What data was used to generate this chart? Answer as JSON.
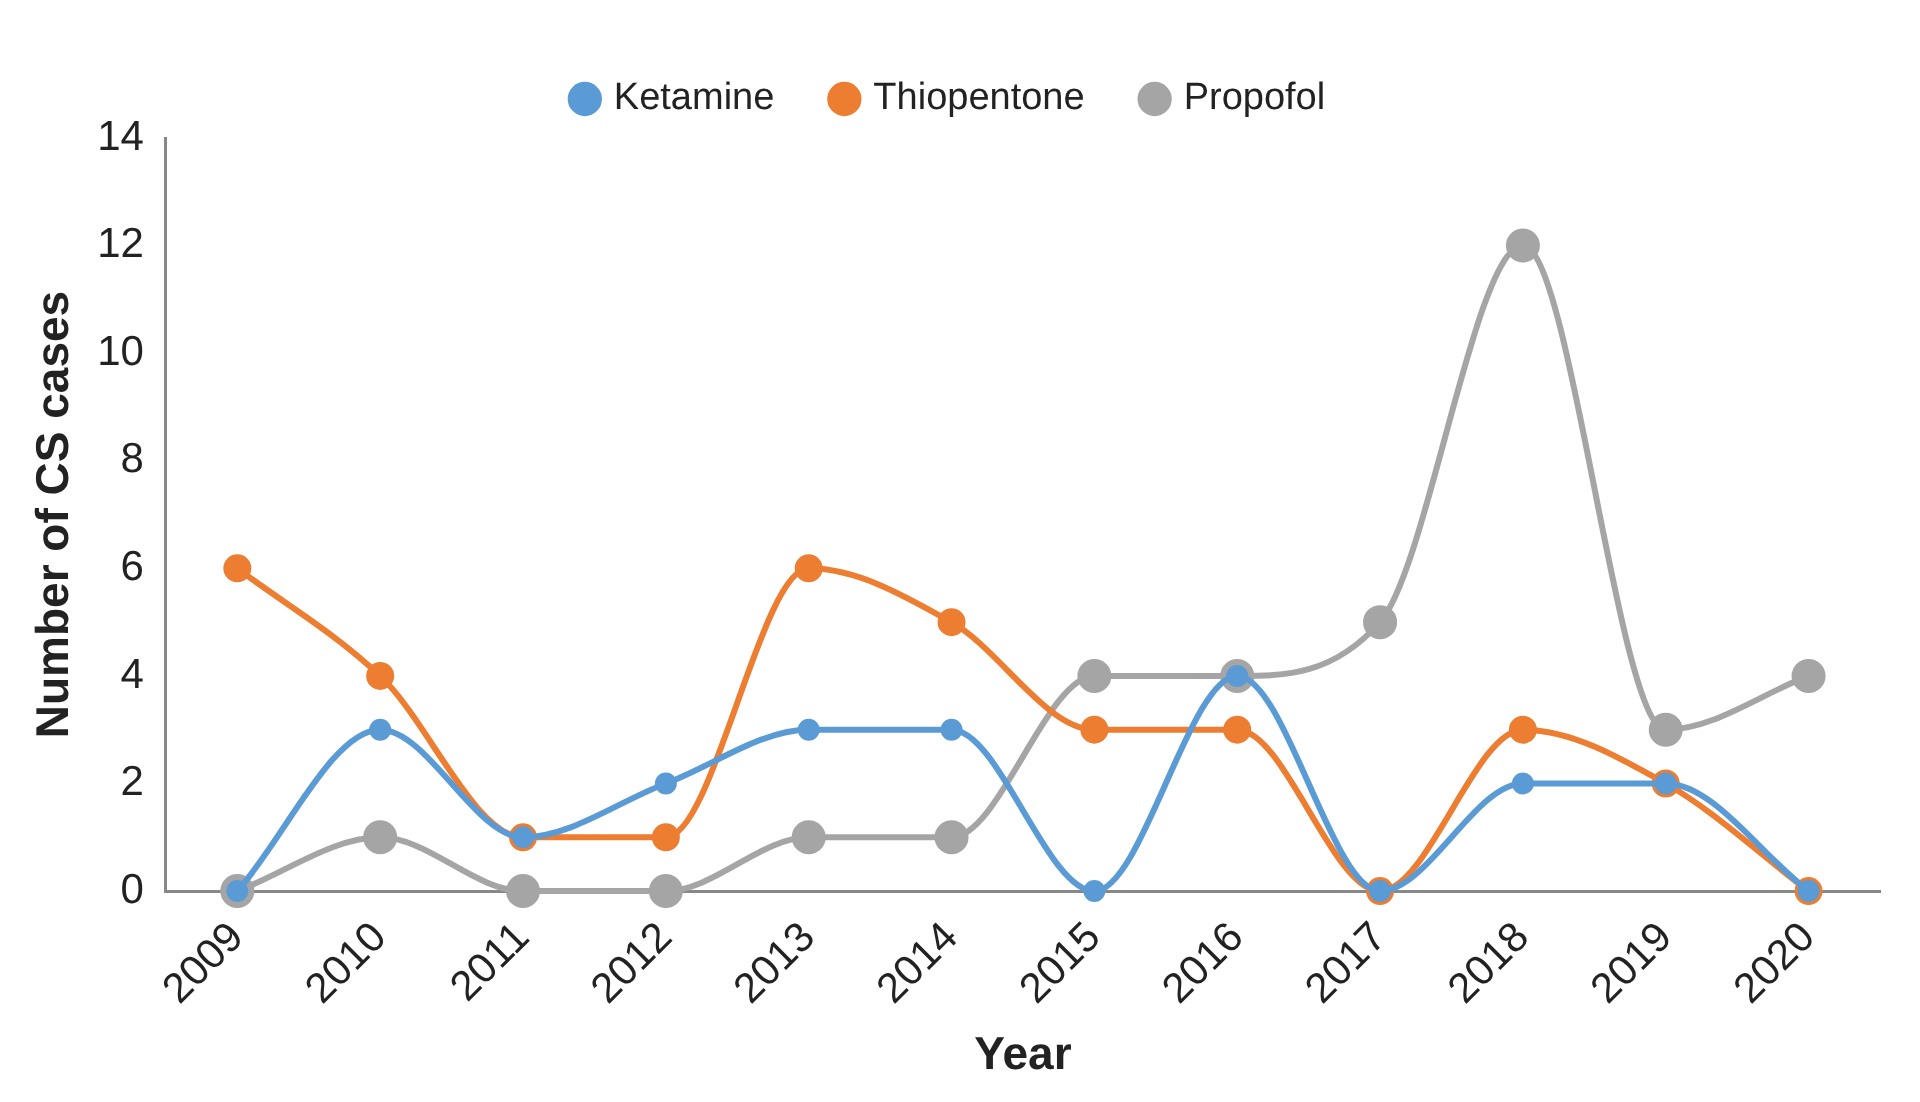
{
  "chart_data": {
    "type": "line",
    "xlabel": "Year",
    "ylabel": "Number of CS cases",
    "categories": [
      "2009",
      "2010",
      "2011",
      "2012",
      "2013",
      "2014",
      "2015",
      "2016",
      "2017",
      "2018",
      "2019",
      "2020"
    ],
    "series": [
      {
        "name": "Ketamine",
        "color": "#5b9bd5",
        "values": [
          0,
          3,
          1,
          2,
          3,
          3,
          0,
          4,
          0,
          2,
          2,
          0
        ]
      },
      {
        "name": "Thiopentone",
        "color": "#ed7d31",
        "values": [
          6,
          4,
          1,
          1,
          6,
          5,
          3,
          3,
          0,
          3,
          2,
          0
        ]
      },
      {
        "name": "Propofol",
        "color": "#a5a5a5",
        "values": [
          0,
          1,
          0,
          0,
          1,
          1,
          4,
          4,
          5,
          12,
          3,
          4
        ]
      }
    ],
    "ylim": [
      0,
      14
    ],
    "yticks": [
      0,
      2,
      4,
      6,
      8,
      10,
      12,
      14
    ],
    "grid": false,
    "legend": "top",
    "marker": "circle",
    "line_style": "solid"
  }
}
